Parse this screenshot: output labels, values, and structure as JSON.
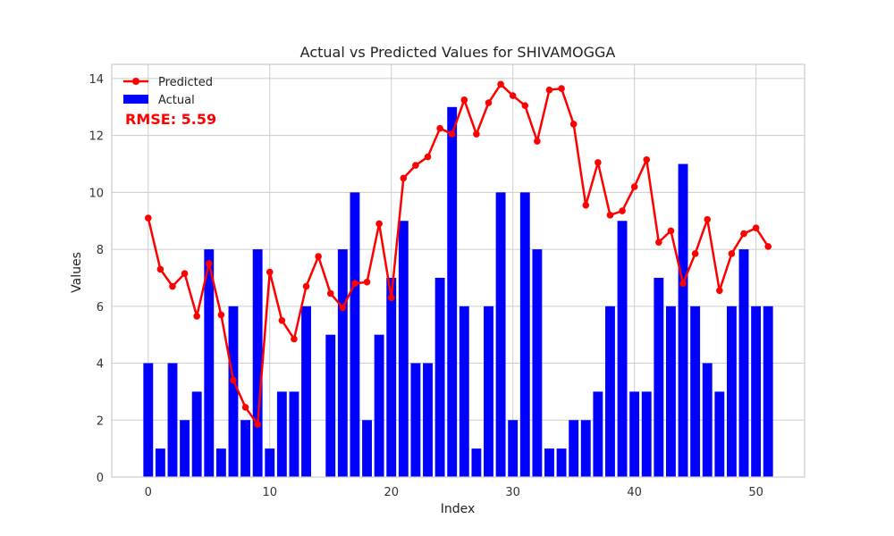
{
  "chart_data": {
    "type": "bar",
    "title": "Actual vs Predicted Values for SHIVAMOGGA",
    "xlabel": "Index",
    "ylabel": "Values",
    "xlim": [
      -3,
      54
    ],
    "ylim": [
      0,
      14.5
    ],
    "xticks": [
      0,
      10,
      20,
      30,
      40,
      50
    ],
    "yticks": [
      0,
      2,
      4,
      6,
      8,
      10,
      12,
      14
    ],
    "grid": true,
    "legend_position": "top-left",
    "annotation": "RMSE: 5.59",
    "x": [
      0,
      1,
      2,
      3,
      4,
      5,
      6,
      7,
      8,
      9,
      10,
      11,
      12,
      13,
      14,
      15,
      16,
      17,
      18,
      19,
      20,
      21,
      22,
      23,
      24,
      25,
      26,
      27,
      28,
      29,
      30,
      31,
      32,
      33,
      34,
      35,
      36,
      37,
      38,
      39,
      40,
      41,
      42,
      43,
      44,
      45,
      46,
      47,
      48,
      49,
      50,
      51
    ],
    "series": [
      {
        "name": "Actual",
        "type": "bar",
        "color": "#0000ff",
        "values": [
          4,
          1,
          4,
          2,
          3,
          8,
          1,
          6,
          2,
          8,
          1,
          3,
          3,
          6,
          0,
          5,
          8,
          10,
          2,
          5,
          7,
          9,
          4,
          4,
          7,
          13,
          6,
          1,
          6,
          10,
          2,
          10,
          8,
          1,
          1,
          2,
          2,
          3,
          6,
          9,
          3,
          3,
          7,
          6,
          11,
          6,
          4,
          3,
          6,
          8,
          6,
          6
        ]
      },
      {
        "name": "Predicted",
        "type": "line",
        "color": "#ff0000",
        "values": [
          9.1,
          7.3,
          6.7,
          7.15,
          5.65,
          7.5,
          5.7,
          3.4,
          2.45,
          1.85,
          7.2,
          5.5,
          4.85,
          6.7,
          7.75,
          6.45,
          5.95,
          6.8,
          6.85,
          8.9,
          6.3,
          10.5,
          10.95,
          11.25,
          12.25,
          12.05,
          13.25,
          12.05,
          13.15,
          13.8,
          13.4,
          13.05,
          11.8,
          13.6,
          13.65,
          12.4,
          9.55,
          11.05,
          9.2,
          9.35,
          10.2,
          11.15,
          8.25,
          8.65,
          6.8,
          7.85,
          9.05,
          6.55,
          7.85,
          8.55,
          8.75,
          8.1
        ]
      }
    ]
  }
}
